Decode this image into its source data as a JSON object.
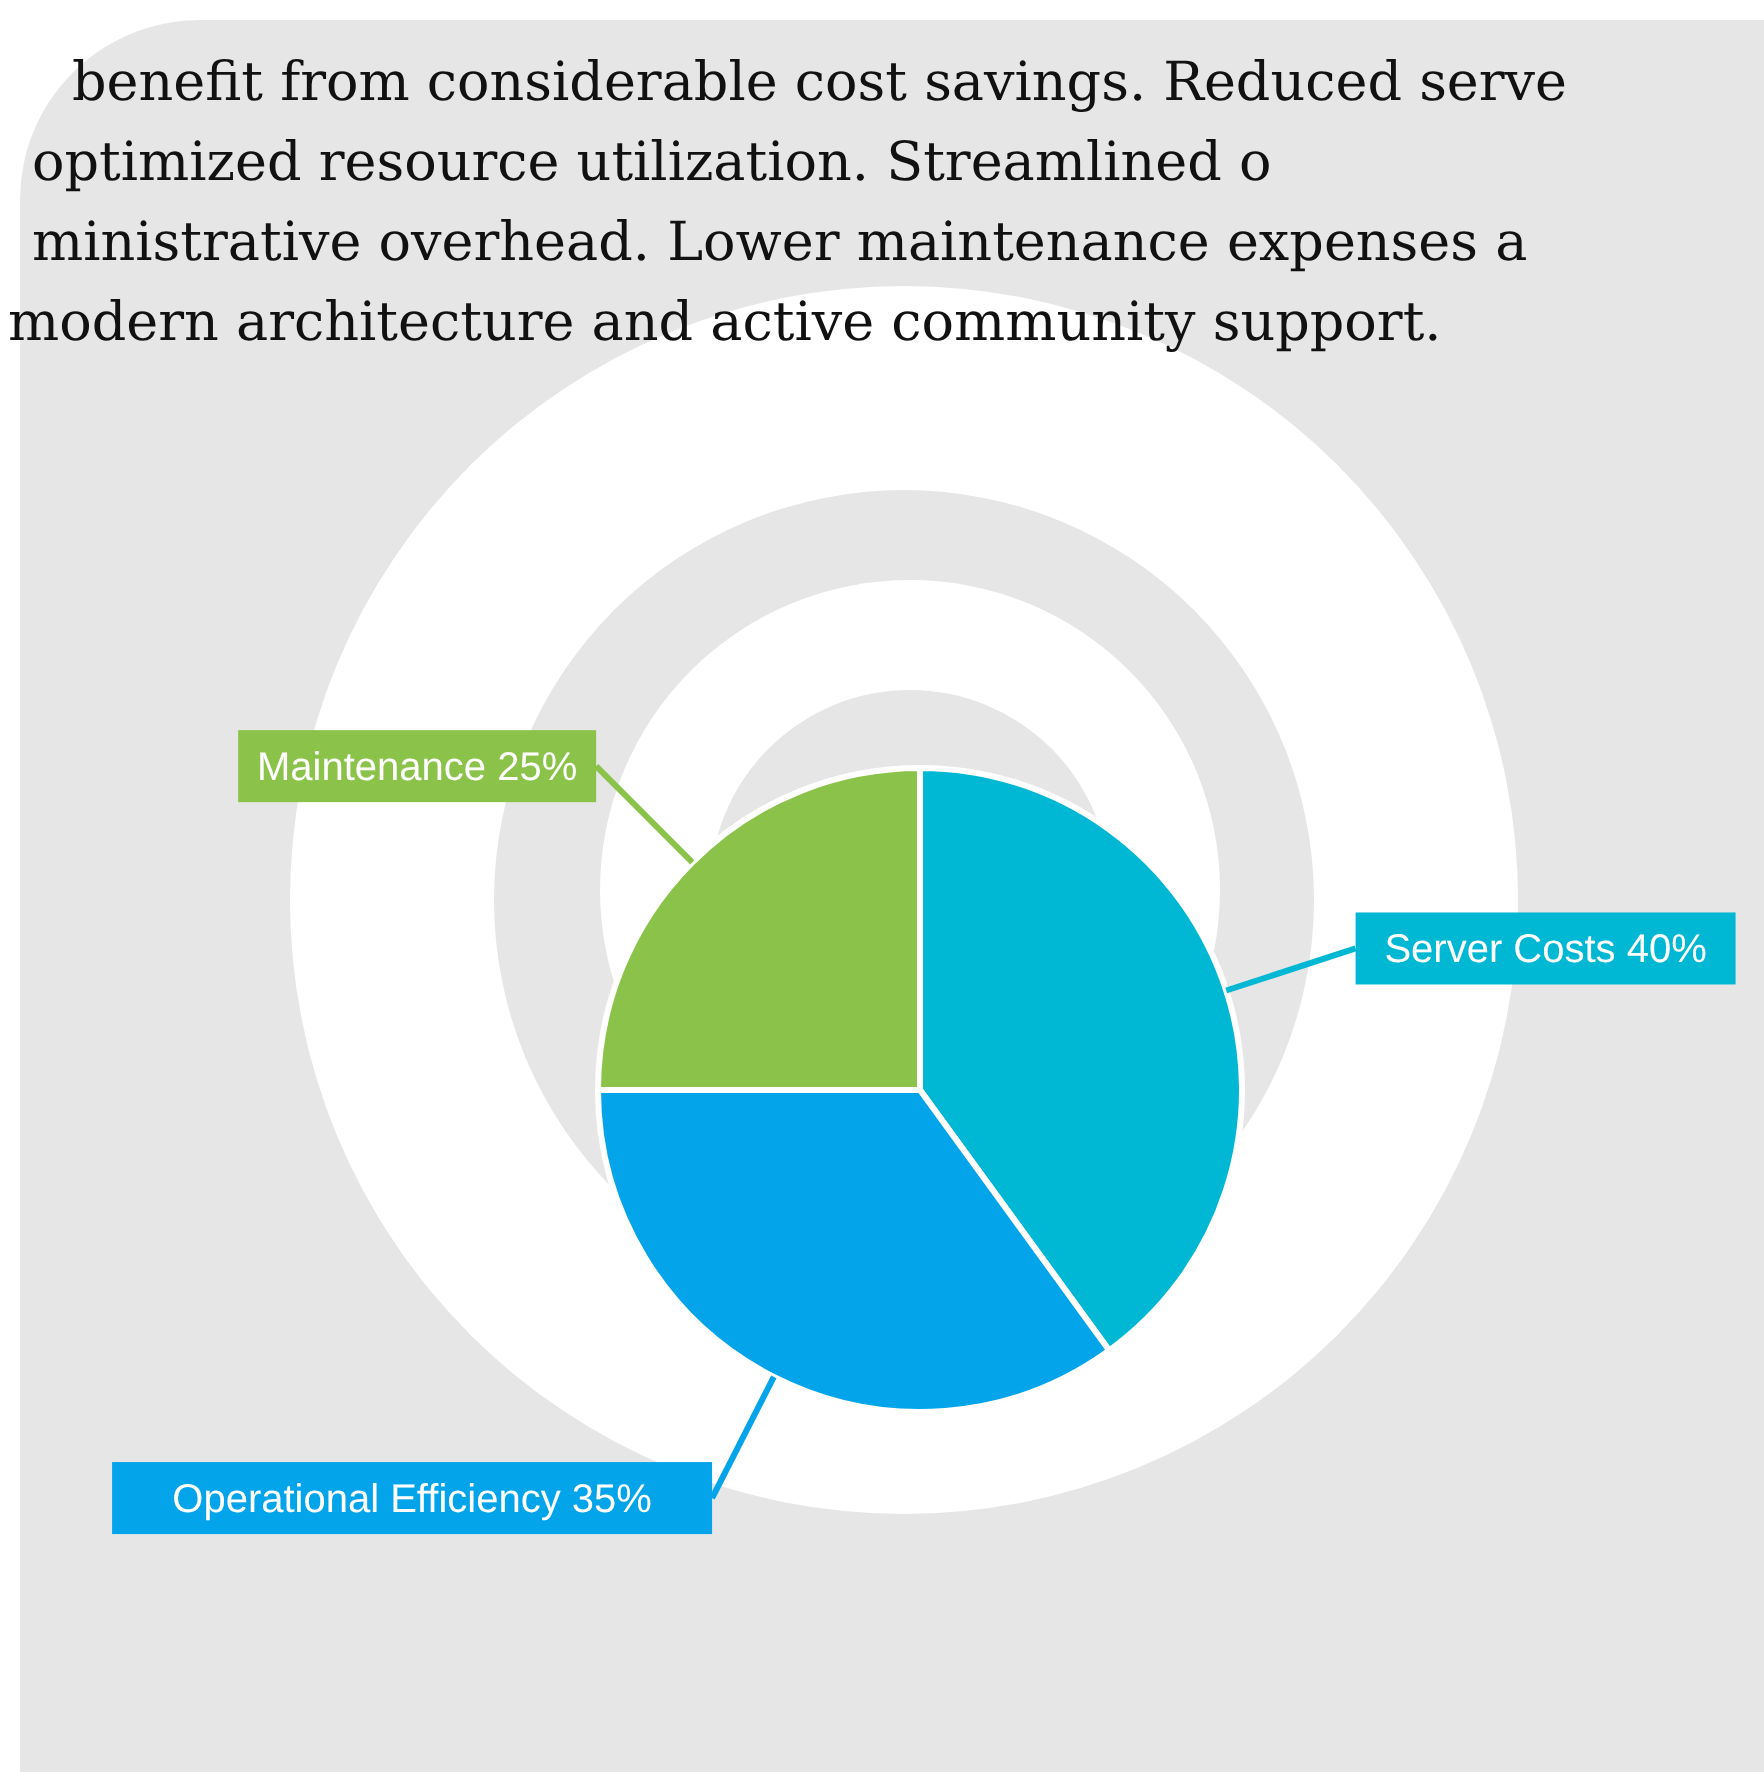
{
  "chart_data": {
    "type": "pie",
    "categories": [
      "Server Costs",
      "Operational Efficiency",
      "Maintenance"
    ],
    "values": [
      40,
      35,
      25
    ],
    "value_labels": [
      "40%",
      "35%",
      "25%"
    ],
    "colors": [
      "#00b8d4",
      "#03a4ea",
      "#8bc34a"
    ],
    "legend": false,
    "annotations": [
      "benefit from considerable cost savings. Reduced serve",
      "optimized resource utilization. Streamlined o",
      "ministrative overhead. Lower maintenance expenses a",
      "modern architecture and active community support."
    ]
  }
}
